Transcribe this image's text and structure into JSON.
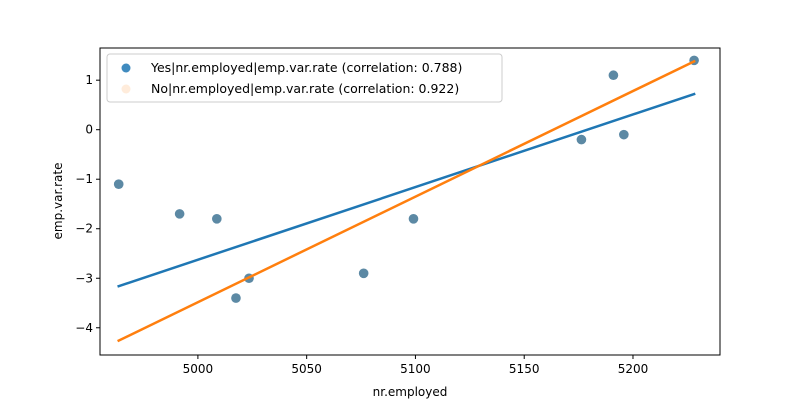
{
  "chart_data": {
    "type": "scatter",
    "title": "",
    "xlabel": "nr.employed",
    "ylabel": "emp.var.rate",
    "xlim": [
      4955,
      5240
    ],
    "ylim": [
      -4.55,
      1.65
    ],
    "xticks": [
      5000,
      5050,
      5100,
      5150,
      5200
    ],
    "yticks": [
      -4,
      -3,
      -2,
      -1,
      0,
      1
    ],
    "grid": false,
    "legend_position": "top-left",
    "series": [
      {
        "name": "Yes|nr.employed|emp.var.rate (correlation: 0.788)",
        "color": "#1f77b4",
        "marker_alpha": 0.85,
        "points": [
          [
            4963.6,
            -1.1
          ],
          [
            4991.6,
            -1.7
          ],
          [
            5008.7,
            -1.8
          ],
          [
            5017.5,
            -3.4
          ],
          [
            5023.5,
            -3.0
          ],
          [
            5076.2,
            -2.9
          ],
          [
            5099.1,
            -1.8
          ],
          [
            5176.3,
            -0.2
          ],
          [
            5191.0,
            1.1
          ],
          [
            5195.8,
            -0.1
          ],
          [
            5228.1,
            1.4
          ]
        ],
        "fit_line": [
          [
            4963.6,
            -3.16
          ],
          [
            5228.1,
            0.72
          ]
        ]
      },
      {
        "name": "No|nr.employed|emp.var.rate (correlation: 0.922)",
        "color": "#ff7f0e",
        "marker_alpha": 0.15,
        "points": [
          [
            4963.6,
            -1.1
          ],
          [
            4991.6,
            -1.7
          ],
          [
            5008.7,
            -1.8
          ],
          [
            5017.5,
            -3.4
          ],
          [
            5023.5,
            -3.0
          ],
          [
            5076.2,
            -2.9
          ],
          [
            5099.1,
            -1.8
          ],
          [
            5176.3,
            -0.2
          ],
          [
            5191.0,
            1.1
          ],
          [
            5195.8,
            -0.1
          ],
          [
            5228.1,
            1.4
          ]
        ],
        "fit_line": [
          [
            4963.6,
            -4.26
          ],
          [
            5228.1,
            1.38
          ]
        ]
      }
    ]
  }
}
